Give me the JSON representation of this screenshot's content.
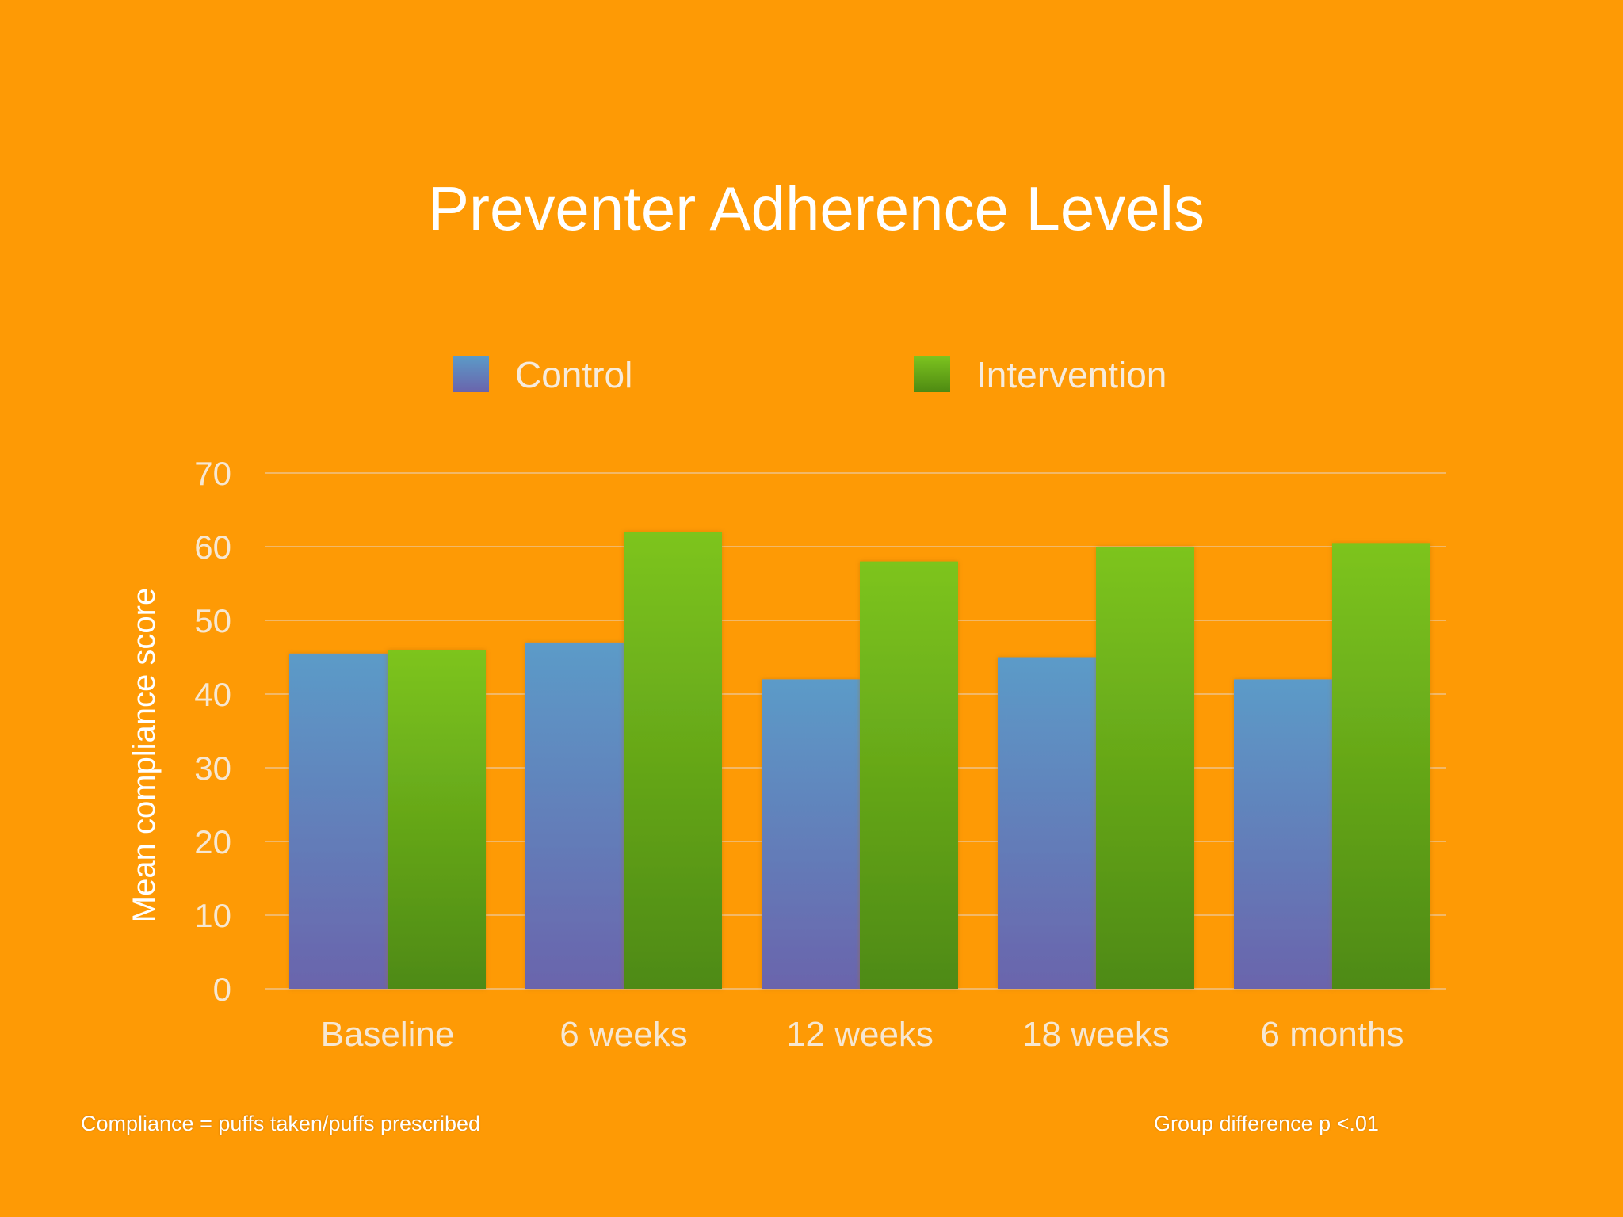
{
  "chart_data": {
    "type": "bar",
    "title": "Preventer Adherence Levels",
    "xlabel": "",
    "ylabel": "Mean compliance score",
    "ylim": [
      0,
      70
    ],
    "yticks": [
      0,
      10,
      20,
      30,
      40,
      50,
      60,
      70
    ],
    "categories": [
      "Baseline",
      "6 weeks",
      "12 weeks",
      "18 weeks",
      "6 months"
    ],
    "series": [
      {
        "name": "Control",
        "values": [
          45.5,
          47,
          42,
          45,
          42
        ]
      },
      {
        "name": "Intervention",
        "values": [
          46,
          62,
          58,
          60,
          60.5
        ]
      }
    ],
    "grid": true,
    "legend_position": "top",
    "colors": {
      "control_top": "#5B9BC8",
      "control_bottom": "#6A64AC",
      "intervention_top": "#7DC41F",
      "intervention_bottom": "#4E8A12",
      "background": "#FE9A05",
      "gridline": "#F2B868",
      "tick_text": "#F6E7D2"
    }
  },
  "footnotes": {
    "left": "Compliance = puffs taken/puffs prescribed",
    "right": "Group difference p <.01"
  }
}
